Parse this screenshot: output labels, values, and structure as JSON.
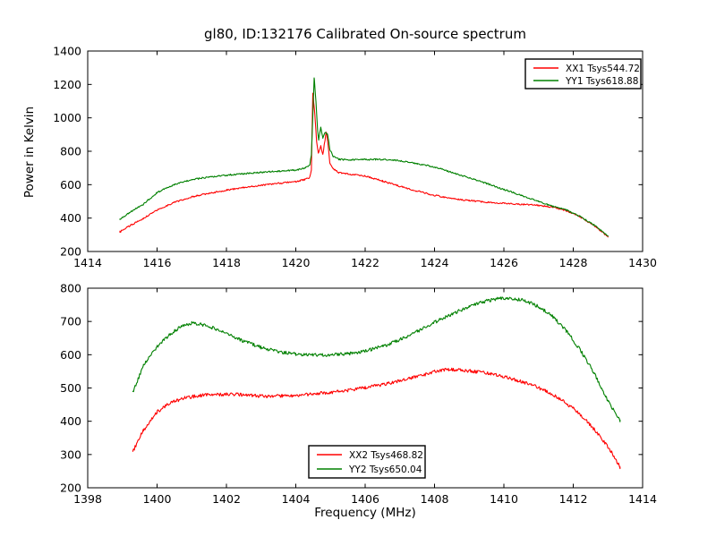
{
  "figure": {
    "background": "#ffffff"
  },
  "chart_data": [
    {
      "type": "line",
      "title": "gl80, ID:132176 Calibrated On-source spectrum",
      "xlabel": "",
      "ylabel": "Power in Kelvin",
      "xlim": [
        1414,
        1430
      ],
      "ylim": [
        200,
        1400
      ],
      "xticks": [
        1414,
        1416,
        1418,
        1420,
        1422,
        1424,
        1426,
        1428,
        1430
      ],
      "yticks": [
        200,
        400,
        600,
        800,
        1000,
        1200,
        1400
      ],
      "grid": false,
      "legend_position": "upper right",
      "series": [
        {
          "name": "XX1 Tsys544.72",
          "color": "#ff0000",
          "points": [
            [
              1414.93,
              318
            ],
            [
              1415.2,
              352
            ],
            [
              1415.6,
              398
            ],
            [
              1416.0,
              448
            ],
            [
              1416.5,
              495
            ],
            [
              1417.0,
              527
            ],
            [
              1417.5,
              549
            ],
            [
              1418.0,
              567
            ],
            [
              1418.5,
              583
            ],
            [
              1419.0,
              597
            ],
            [
              1419.5,
              608
            ],
            [
              1420.0,
              618
            ],
            [
              1420.25,
              630
            ],
            [
              1420.4,
              642
            ],
            [
              1420.45,
              690
            ],
            [
              1420.49,
              1150
            ],
            [
              1420.55,
              1020
            ],
            [
              1420.6,
              860
            ],
            [
              1420.65,
              785
            ],
            [
              1420.72,
              830
            ],
            [
              1420.78,
              782
            ],
            [
              1420.88,
              918
            ],
            [
              1420.93,
              840
            ],
            [
              1420.98,
              730
            ],
            [
              1421.08,
              695
            ],
            [
              1421.25,
              672
            ],
            [
              1421.5,
              664
            ],
            [
              1422.0,
              652
            ],
            [
              1422.5,
              622
            ],
            [
              1423.0,
              590
            ],
            [
              1423.5,
              562
            ],
            [
              1424.0,
              536
            ],
            [
              1424.5,
              518
            ],
            [
              1425.0,
              505
            ],
            [
              1425.5,
              495
            ],
            [
              1426.0,
              488
            ],
            [
              1426.5,
              482
            ],
            [
              1427.0,
              476
            ],
            [
              1427.4,
              466
            ],
            [
              1427.8,
              445
            ],
            [
              1428.2,
              406
            ],
            [
              1428.6,
              356
            ],
            [
              1429.0,
              290
            ]
          ]
        },
        {
          "name": "YY1 Tsys618.88",
          "color": "#008000",
          "points": [
            [
              1414.93,
              392
            ],
            [
              1415.2,
              432
            ],
            [
              1415.6,
              482
            ],
            [
              1416.0,
              553
            ],
            [
              1416.5,
              601
            ],
            [
              1417.0,
              630
            ],
            [
              1417.5,
              646
            ],
            [
              1418.0,
              657
            ],
            [
              1418.5,
              666
            ],
            [
              1419.0,
              674
            ],
            [
              1419.5,
              681
            ],
            [
              1420.0,
              688
            ],
            [
              1420.25,
              698
            ],
            [
              1420.4,
              715
            ],
            [
              1420.45,
              780
            ],
            [
              1420.53,
              1240
            ],
            [
              1420.58,
              1100
            ],
            [
              1420.63,
              920
            ],
            [
              1420.66,
              868
            ],
            [
              1420.72,
              945
            ],
            [
              1420.78,
              880
            ],
            [
              1420.86,
              915
            ],
            [
              1420.92,
              898
            ],
            [
              1420.98,
              812
            ],
            [
              1421.08,
              770
            ],
            [
              1421.25,
              752
            ],
            [
              1421.5,
              748
            ],
            [
              1422.0,
              750
            ],
            [
              1422.3,
              751
            ],
            [
              1422.7,
              749
            ],
            [
              1423.0,
              743
            ],
            [
              1423.5,
              726
            ],
            [
              1424.0,
              706
            ],
            [
              1424.5,
              673
            ],
            [
              1425.0,
              641
            ],
            [
              1425.5,
              607
            ],
            [
              1426.0,
              571
            ],
            [
              1426.5,
              536
            ],
            [
              1427.0,
              500
            ],
            [
              1427.4,
              470
            ],
            [
              1427.8,
              449
            ],
            [
              1428.2,
              409
            ],
            [
              1428.6,
              359
            ],
            [
              1429.0,
              295
            ]
          ]
        }
      ]
    },
    {
      "type": "line",
      "title": "",
      "xlabel": "Frequency (MHz)",
      "ylabel": "",
      "xlim": [
        1398,
        1414
      ],
      "ylim": [
        200,
        800
      ],
      "xticks": [
        1398,
        1400,
        1402,
        1404,
        1406,
        1408,
        1410,
        1412,
        1414
      ],
      "yticks": [
        200,
        300,
        400,
        500,
        600,
        700,
        800
      ],
      "grid": false,
      "legend_position": "lower center",
      "series": [
        {
          "name": "XX2 Tsys468.82",
          "color": "#ff0000",
          "points": [
            [
              1399.3,
              308
            ],
            [
              1399.6,
              372
            ],
            [
              1400.0,
              428
            ],
            [
              1400.4,
              457
            ],
            [
              1400.8,
              470
            ],
            [
              1401.2,
              477
            ],
            [
              1401.6,
              480
            ],
            [
              1402.0,
              481
            ],
            [
              1402.4,
              480
            ],
            [
              1402.8,
              477
            ],
            [
              1403.2,
              475
            ],
            [
              1403.6,
              476
            ],
            [
              1404.0,
              478
            ],
            [
              1404.5,
              482
            ],
            [
              1405.0,
              487
            ],
            [
              1405.5,
              493
            ],
            [
              1406.0,
              501
            ],
            [
              1406.5,
              510
            ],
            [
              1407.0,
              521
            ],
            [
              1407.5,
              534
            ],
            [
              1408.0,
              549
            ],
            [
              1408.4,
              556
            ],
            [
              1408.8,
              554
            ],
            [
              1409.2,
              549
            ],
            [
              1409.6,
              543
            ],
            [
              1410.0,
              534
            ],
            [
              1410.4,
              523
            ],
            [
              1410.8,
              509
            ],
            [
              1411.2,
              492
            ],
            [
              1411.6,
              468
            ],
            [
              1412.0,
              438
            ],
            [
              1412.4,
              400
            ],
            [
              1412.8,
              352
            ],
            [
              1413.1,
              308
            ],
            [
              1413.35,
              262
            ]
          ]
        },
        {
          "name": "YY2 Tsys650.04",
          "color": "#008000",
          "points": [
            [
              1399.3,
              487
            ],
            [
              1399.6,
              565
            ],
            [
              1400.0,
              625
            ],
            [
              1400.4,
              663
            ],
            [
              1400.7,
              686
            ],
            [
              1401.0,
              695
            ],
            [
              1401.3,
              691
            ],
            [
              1401.7,
              677
            ],
            [
              1402.1,
              658
            ],
            [
              1402.5,
              640
            ],
            [
              1403.0,
              622
            ],
            [
              1403.5,
              609
            ],
            [
              1404.0,
              602
            ],
            [
              1404.5,
              599
            ],
            [
              1405.0,
              599
            ],
            [
              1405.5,
              603
            ],
            [
              1406.0,
              611
            ],
            [
              1406.5,
              625
            ],
            [
              1407.0,
              645
            ],
            [
              1407.5,
              670
            ],
            [
              1408.0,
              697
            ],
            [
              1408.5,
              722
            ],
            [
              1409.0,
              745
            ],
            [
              1409.4,
              759
            ],
            [
              1409.8,
              768
            ],
            [
              1410.2,
              770
            ],
            [
              1410.6,
              763
            ],
            [
              1411.0,
              745
            ],
            [
              1411.4,
              715
            ],
            [
              1411.8,
              672
            ],
            [
              1412.2,
              615
            ],
            [
              1412.6,
              545
            ],
            [
              1413.0,
              462
            ],
            [
              1413.35,
              400
            ]
          ]
        }
      ]
    }
  ]
}
